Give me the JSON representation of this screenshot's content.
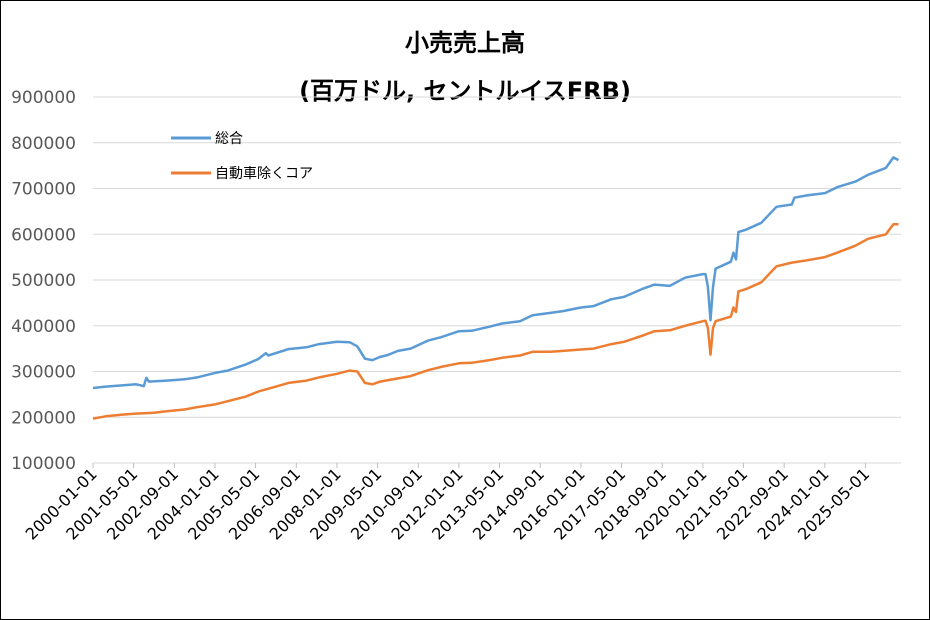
{
  "chart_data": {
    "type": "line",
    "title": "小売売上高",
    "subtitle": "(百万ドル, セントルイスFRB)",
    "xlabel": "",
    "ylabel": "",
    "ylim": [
      100000,
      900000
    ],
    "yticks": [
      "900000",
      "800000",
      "700000",
      "600000",
      "500000",
      "400000",
      "300000",
      "200000",
      "100000"
    ],
    "x_tick_labels": [
      "2000-01-01",
      "2001-05-01",
      "2002-09-01",
      "2004-01-01",
      "2005-05-01",
      "2006-09-01",
      "2008-01-01",
      "2009-05-01",
      "2010-09-01",
      "2012-01-01",
      "2013-05-01",
      "2014-09-01",
      "2016-01-01",
      "2017-05-01",
      "2018-09-01",
      "2020-01-01",
      "2021-05-01",
      "2022-09-01",
      "2024-01-01",
      "2025-05-01"
    ],
    "xlim": [
      "2000-01-01",
      "2026-07-01"
    ],
    "grid": true,
    "legend_position": "top-left",
    "series": [
      {
        "name": "総合",
        "color": "#5b9bd5",
        "points": [
          [
            "2000-01-01",
            264000
          ],
          [
            "2000-06-01",
            267000
          ],
          [
            "2001-01-01",
            270000
          ],
          [
            "2001-06-01",
            272000
          ],
          [
            "2001-09-01",
            268000
          ],
          [
            "2001-10-01",
            286000
          ],
          [
            "2001-11-01",
            278000
          ],
          [
            "2002-06-01",
            280000
          ],
          [
            "2003-01-01",
            283000
          ],
          [
            "2003-06-01",
            287000
          ],
          [
            "2004-01-01",
            297000
          ],
          [
            "2004-06-01",
            302000
          ],
          [
            "2005-01-01",
            315000
          ],
          [
            "2005-06-01",
            327000
          ],
          [
            "2005-09-01",
            340000
          ],
          [
            "2005-10-01",
            335000
          ],
          [
            "2006-06-01",
            349000
          ],
          [
            "2007-01-01",
            353000
          ],
          [
            "2007-06-01",
            360000
          ],
          [
            "2008-01-01",
            365000
          ],
          [
            "2008-06-01",
            364000
          ],
          [
            "2008-09-01",
            355000
          ],
          [
            "2008-12-01",
            328000
          ],
          [
            "2009-03-01",
            325000
          ],
          [
            "2009-06-01",
            332000
          ],
          [
            "2009-09-01",
            336000
          ],
          [
            "2010-01-01",
            345000
          ],
          [
            "2010-06-01",
            350000
          ],
          [
            "2011-01-01",
            368000
          ],
          [
            "2011-06-01",
            375000
          ],
          [
            "2012-01-01",
            388000
          ],
          [
            "2012-06-01",
            389000
          ],
          [
            "2013-01-01",
            398000
          ],
          [
            "2013-06-01",
            405000
          ],
          [
            "2014-01-01",
            410000
          ],
          [
            "2014-06-01",
            423000
          ],
          [
            "2015-01-01",
            428000
          ],
          [
            "2015-06-01",
            432000
          ],
          [
            "2016-01-01",
            440000
          ],
          [
            "2016-06-01",
            443000
          ],
          [
            "2017-01-01",
            458000
          ],
          [
            "2017-06-01",
            463000
          ],
          [
            "2018-01-01",
            480000
          ],
          [
            "2018-06-01",
            490000
          ],
          [
            "2018-12-01",
            487000
          ],
          [
            "2019-06-01",
            505000
          ],
          [
            "2020-01-01",
            513000
          ],
          [
            "2020-02-01",
            513000
          ],
          [
            "2020-03-01",
            485000
          ],
          [
            "2020-04-01",
            412000
          ],
          [
            "2020-05-01",
            485000
          ],
          [
            "2020-06-01",
            525000
          ],
          [
            "2020-12-01",
            540000
          ],
          [
            "2021-01-01",
            560000
          ],
          [
            "2021-02-01",
            545000
          ],
          [
            "2021-03-01",
            605000
          ],
          [
            "2021-06-01",
            610000
          ],
          [
            "2021-12-01",
            625000
          ],
          [
            "2022-06-01",
            660000
          ],
          [
            "2022-12-01",
            665000
          ],
          [
            "2023-01-01",
            680000
          ],
          [
            "2023-06-01",
            685000
          ],
          [
            "2024-01-01",
            690000
          ],
          [
            "2024-06-01",
            703000
          ],
          [
            "2025-01-01",
            715000
          ],
          [
            "2025-06-01",
            730000
          ],
          [
            "2026-01-01",
            745000
          ],
          [
            "2026-04-01",
            768000
          ],
          [
            "2026-06-01",
            762000
          ]
        ]
      },
      {
        "name": "自動車除くコア",
        "color": "#ed7d31",
        "points": [
          [
            "2000-01-01",
            197000
          ],
          [
            "2000-06-01",
            202000
          ],
          [
            "2001-01-01",
            206000
          ],
          [
            "2001-06-01",
            208000
          ],
          [
            "2002-01-01",
            210000
          ],
          [
            "2002-06-01",
            213000
          ],
          [
            "2003-01-01",
            217000
          ],
          [
            "2003-06-01",
            222000
          ],
          [
            "2004-01-01",
            228000
          ],
          [
            "2004-06-01",
            235000
          ],
          [
            "2005-01-01",
            245000
          ],
          [
            "2005-06-01",
            256000
          ],
          [
            "2006-01-01",
            267000
          ],
          [
            "2006-06-01",
            275000
          ],
          [
            "2007-01-01",
            280000
          ],
          [
            "2007-06-01",
            287000
          ],
          [
            "2008-01-01",
            295000
          ],
          [
            "2008-06-01",
            302000
          ],
          [
            "2008-09-01",
            300000
          ],
          [
            "2008-12-01",
            275000
          ],
          [
            "2009-03-01",
            272000
          ],
          [
            "2009-06-01",
            278000
          ],
          [
            "2010-01-01",
            285000
          ],
          [
            "2010-06-01",
            290000
          ],
          [
            "2011-01-01",
            303000
          ],
          [
            "2011-06-01",
            310000
          ],
          [
            "2012-01-01",
            318000
          ],
          [
            "2012-06-01",
            319000
          ],
          [
            "2013-01-01",
            325000
          ],
          [
            "2013-06-01",
            330000
          ],
          [
            "2014-01-01",
            335000
          ],
          [
            "2014-06-01",
            343000
          ],
          [
            "2015-01-01",
            343000
          ],
          [
            "2015-06-01",
            345000
          ],
          [
            "2016-01-01",
            348000
          ],
          [
            "2016-06-01",
            350000
          ],
          [
            "2017-01-01",
            360000
          ],
          [
            "2017-06-01",
            365000
          ],
          [
            "2018-01-01",
            378000
          ],
          [
            "2018-06-01",
            388000
          ],
          [
            "2018-12-01",
            390000
          ],
          [
            "2019-06-01",
            400000
          ],
          [
            "2020-01-01",
            410000
          ],
          [
            "2020-02-01",
            411000
          ],
          [
            "2020-03-01",
            395000
          ],
          [
            "2020-04-01",
            337000
          ],
          [
            "2020-05-01",
            395000
          ],
          [
            "2020-06-01",
            410000
          ],
          [
            "2020-12-01",
            420000
          ],
          [
            "2021-01-01",
            440000
          ],
          [
            "2021-02-01",
            430000
          ],
          [
            "2021-03-01",
            475000
          ],
          [
            "2021-06-01",
            480000
          ],
          [
            "2021-12-01",
            495000
          ],
          [
            "2022-06-01",
            530000
          ],
          [
            "2022-12-01",
            538000
          ],
          [
            "2023-06-01",
            543000
          ],
          [
            "2024-01-01",
            550000
          ],
          [
            "2024-06-01",
            560000
          ],
          [
            "2025-01-01",
            575000
          ],
          [
            "2025-06-01",
            590000
          ],
          [
            "2026-01-01",
            600000
          ],
          [
            "2026-04-01",
            622000
          ],
          [
            "2026-06-01",
            622000
          ]
        ]
      }
    ]
  }
}
